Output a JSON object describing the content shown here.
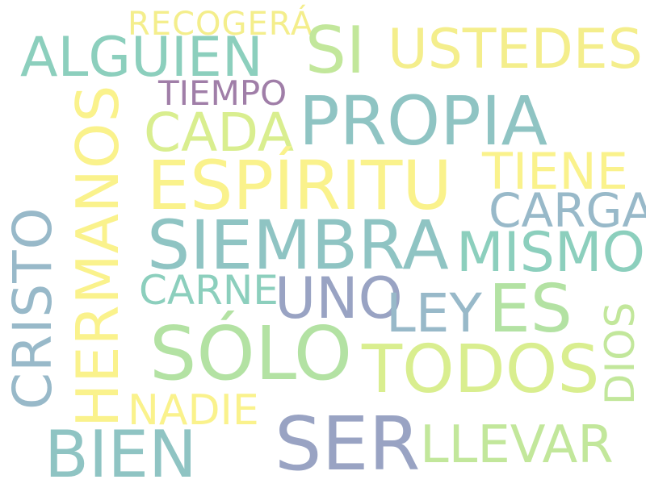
{
  "words": [
    {
      "id": "recogera",
      "text": "RECOGERÁ",
      "color": "#f4ee8c"
    },
    {
      "id": "si",
      "text": "SI",
      "color": "#c2e79b"
    },
    {
      "id": "ustedes",
      "text": "USTEDES",
      "color": "#f4ee8c"
    },
    {
      "id": "alguien",
      "text": "ALGUIEN",
      "color": "#8ccfbd"
    },
    {
      "id": "tiempo",
      "text": "TIEMPO",
      "color": "#a07ea8"
    },
    {
      "id": "propia",
      "text": "PROPIA",
      "color": "#8fc4c3"
    },
    {
      "id": "cada",
      "text": "CADA",
      "color": "#d9ee8f"
    },
    {
      "id": "hermanos",
      "text": "HERMANOS",
      "color": "#faf28c"
    },
    {
      "id": "espiritu",
      "text": "ESPÍRITU",
      "color": "#faf28c"
    },
    {
      "id": "tiene",
      "text": "TIENE",
      "color": "#faf28c"
    },
    {
      "id": "carga",
      "text": "CARGA",
      "color": "#98b9c9"
    },
    {
      "id": "cristo",
      "text": "CRISTO",
      "color": "#98b9c9"
    },
    {
      "id": "siembra",
      "text": "SIEMBRA",
      "color": "#8fc4c3"
    },
    {
      "id": "mismo",
      "text": "MISMO",
      "color": "#8ccfbd"
    },
    {
      "id": "carne",
      "text": "CARNE",
      "color": "#8ccfbd"
    },
    {
      "id": "uno",
      "text": "UNO",
      "color": "#99a3c3"
    },
    {
      "id": "ley",
      "text": "LEY",
      "color": "#98b9c9"
    },
    {
      "id": "es",
      "text": "ES",
      "color": "#b3e2a3"
    },
    {
      "id": "dios",
      "text": "DIOS",
      "color": "#c2e79b"
    },
    {
      "id": "solo",
      "text": "SÓLO",
      "color": "#b3e2a3"
    },
    {
      "id": "todos",
      "text": "TODOS",
      "color": "#d9ee8f"
    },
    {
      "id": "nadie",
      "text": "NADIE",
      "color": "#faf28c"
    },
    {
      "id": "bien",
      "text": "BIEN",
      "color": "#8fc4c3"
    },
    {
      "id": "ser",
      "text": "SER",
      "color": "#99a3c3"
    },
    {
      "id": "llevar",
      "text": "LLEVAR",
      "color": "#c2e79b"
    }
  ]
}
